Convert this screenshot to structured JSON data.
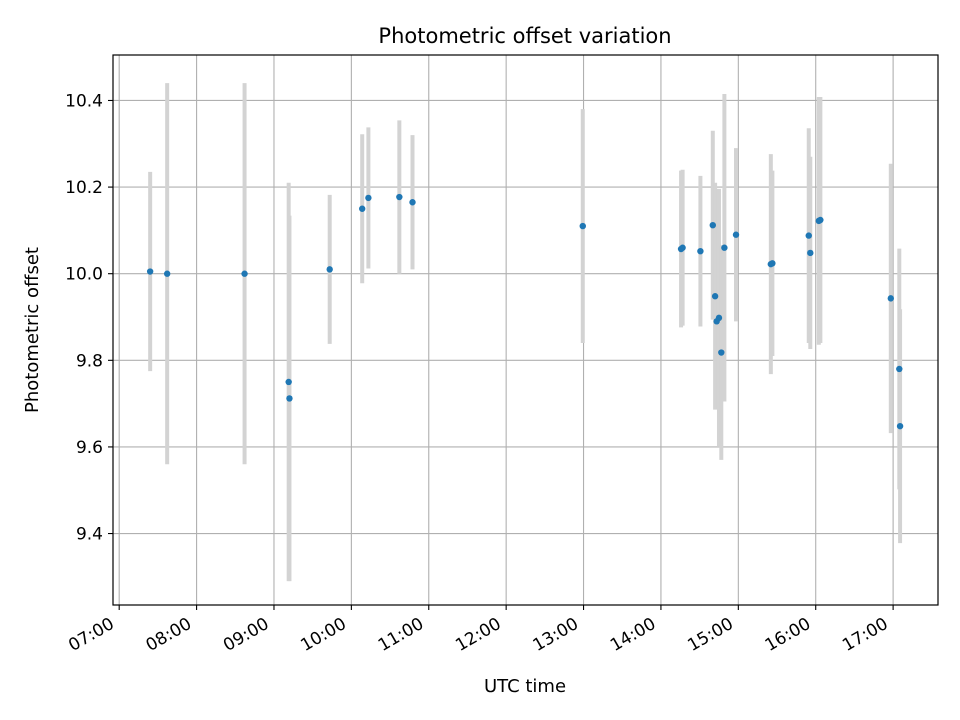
{
  "chart_data": {
    "type": "scatter",
    "title": "Photometric offset variation",
    "xlabel": "UTC time",
    "ylabel": "Photometric offset",
    "x_unit": "hours UTC",
    "xlim": [
      6.92,
      17.58
    ],
    "ylim": [
      9.235,
      10.505
    ],
    "x_ticks": [
      {
        "value": 7,
        "label": "07:00"
      },
      {
        "value": 8,
        "label": "08:00"
      },
      {
        "value": 9,
        "label": "09:00"
      },
      {
        "value": 10,
        "label": "10:00"
      },
      {
        "value": 11,
        "label": "11:00"
      },
      {
        "value": 12,
        "label": "12:00"
      },
      {
        "value": 13,
        "label": "13:00"
      },
      {
        "value": 14,
        "label": "14:00"
      },
      {
        "value": 15,
        "label": "15:00"
      },
      {
        "value": 16,
        "label": "16:00"
      },
      {
        "value": 17,
        "label": "17:00"
      }
    ],
    "y_ticks": [
      {
        "value": 9.4,
        "label": "9.4"
      },
      {
        "value": 9.6,
        "label": "9.6"
      },
      {
        "value": 9.8,
        "label": "9.8"
      },
      {
        "value": 10.0,
        "label": "10.0"
      },
      {
        "value": 10.2,
        "label": "10.2"
      },
      {
        "value": 10.4,
        "label": "10.4"
      }
    ],
    "grid": true,
    "point_color": "#1f77b4",
    "errorbar_color": "#d3d3d3",
    "points": [
      {
        "x": 7.4,
        "y": 10.005,
        "low": 9.775,
        "high": 10.235
      },
      {
        "x": 7.62,
        "y": 10.0,
        "low": 9.56,
        "high": 10.44
      },
      {
        "x": 8.62,
        "y": 10.0,
        "low": 9.56,
        "high": 10.44
      },
      {
        "x": 9.19,
        "y": 9.75,
        "low": 9.29,
        "high": 10.21
      },
      {
        "x": 9.2,
        "y": 9.712,
        "low": 9.29,
        "high": 10.134
      },
      {
        "x": 9.72,
        "y": 10.01,
        "low": 9.838,
        "high": 10.182
      },
      {
        "x": 10.14,
        "y": 10.15,
        "low": 9.978,
        "high": 10.322
      },
      {
        "x": 10.22,
        "y": 10.175,
        "low": 10.012,
        "high": 10.338
      },
      {
        "x": 10.62,
        "y": 10.177,
        "low": 10.0,
        "high": 10.354
      },
      {
        "x": 10.79,
        "y": 10.165,
        "low": 10.01,
        "high": 10.32
      },
      {
        "x": 12.99,
        "y": 10.11,
        "low": 9.84,
        "high": 10.38
      },
      {
        "x": 14.26,
        "y": 10.057,
        "low": 9.876,
        "high": 10.238
      },
      {
        "x": 14.28,
        "y": 10.06,
        "low": 9.88,
        "high": 10.24
      },
      {
        "x": 14.51,
        "y": 10.052,
        "low": 9.878,
        "high": 10.226
      },
      {
        "x": 14.67,
        "y": 10.112,
        "low": 9.894,
        "high": 10.33
      },
      {
        "x": 14.7,
        "y": 9.948,
        "low": 9.686,
        "high": 10.21
      },
      {
        "x": 14.72,
        "y": 9.89,
        "low": 9.71,
        "high": 10.07
      },
      {
        "x": 14.75,
        "y": 9.898,
        "low": 9.6,
        "high": 10.196
      },
      {
        "x": 14.78,
        "y": 9.818,
        "low": 9.57,
        "high": 10.066
      },
      {
        "x": 14.82,
        "y": 10.06,
        "low": 9.705,
        "high": 10.415
      },
      {
        "x": 14.97,
        "y": 10.09,
        "low": 9.89,
        "high": 10.29
      },
      {
        "x": 15.42,
        "y": 10.022,
        "low": 9.768,
        "high": 10.276
      },
      {
        "x": 15.44,
        "y": 10.024,
        "low": 9.81,
        "high": 10.238
      },
      {
        "x": 15.91,
        "y": 10.088,
        "low": 9.84,
        "high": 10.336
      },
      {
        "x": 15.93,
        "y": 10.048,
        "low": 9.826,
        "high": 10.27
      },
      {
        "x": 16.04,
        "y": 10.122,
        "low": 9.836,
        "high": 10.408
      },
      {
        "x": 16.06,
        "y": 10.124,
        "low": 9.84,
        "high": 10.408
      },
      {
        "x": 16.97,
        "y": 9.943,
        "low": 9.632,
        "high": 10.254
      },
      {
        "x": 17.08,
        "y": 9.78,
        "low": 9.502,
        "high": 10.058
      },
      {
        "x": 17.09,
        "y": 9.648,
        "low": 9.378,
        "high": 9.918
      }
    ]
  }
}
